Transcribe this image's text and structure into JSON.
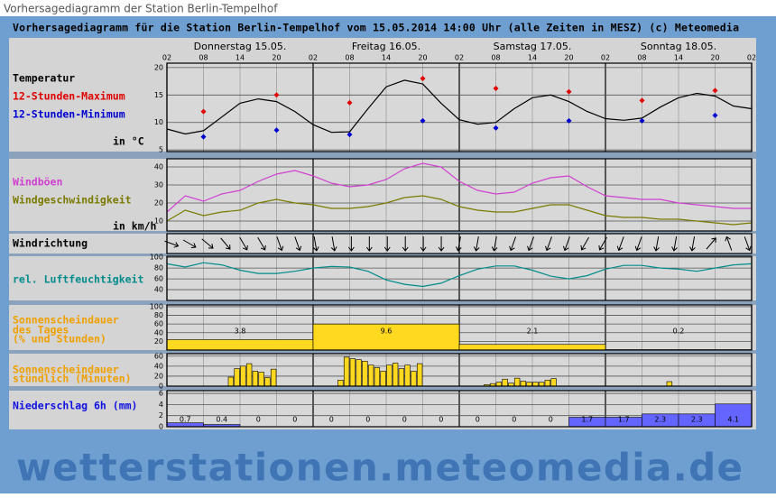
{
  "header": {
    "page_title": "Vorhersagediagramm der Station Berlin-Tempelhof",
    "title": "Vorhersagediagramm für die Station Berlin-Tempelhof vom 15.05.2014 14:00 Uhr (alle Zeiten in MESZ)  (c) Meteomedia",
    "days": [
      "Donnerstag 15.05.",
      "Freitag 16.05.",
      "Samstag 17.05.",
      "Sonntag 18.05."
    ],
    "hours": [
      "02",
      "08",
      "14",
      "20",
      "02",
      "08",
      "14",
      "20",
      "02",
      "08",
      "14",
      "20",
      "02",
      "08",
      "14",
      "20",
      "02"
    ]
  },
  "watermark": "wetterstationen.meteomedia.de",
  "chart_data": [
    {
      "type": "line",
      "title": "Temperatur",
      "title_color": "#000000",
      "unit": "in °C",
      "ylim": [
        4.7,
        20.8
      ],
      "yticks": [
        5,
        10,
        15,
        20
      ],
      "series": [
        {
          "color": "#000000",
          "values": [
            8.8,
            7.9,
            8.5,
            11,
            13.5,
            14.3,
            13.8,
            12,
            9.6,
            8.2,
            8.3,
            12.5,
            16.5,
            17.7,
            17,
            13.5,
            10.5,
            9.7,
            10,
            12.5,
            14.5,
            15,
            13.8,
            12,
            10.7,
            10.4,
            10.8,
            12.8,
            14.5,
            15.3,
            14.8,
            13,
            12.5
          ]
        },
        {
          "name": "12-Stunden-Maximum",
          "color": "#e00000",
          "marker": "diamond",
          "values": [
            null,
            12,
            null,
            15,
            null,
            13.6,
            null,
            18,
            null,
            16.2,
            null,
            15.6,
            null,
            14,
            null,
            15.8,
            null
          ]
        },
        {
          "name": "12-Stunden-Minimum",
          "color": "#0000d0",
          "marker": "diamond",
          "values": [
            null,
            7.4,
            null,
            8.6,
            null,
            7.8,
            null,
            10.3,
            null,
            9,
            null,
            10.3,
            null,
            10.3,
            null,
            11.3,
            null
          ]
        }
      ]
    },
    {
      "type": "line",
      "unit": "in km/h",
      "ylim": [
        4.5,
        44.5
      ],
      "yticks": [
        10,
        20,
        30,
        40
      ],
      "series": [
        {
          "name": "Windböen",
          "color": "#d040d0",
          "values": [
            15,
            24,
            21,
            25,
            27,
            32,
            36,
            38,
            35,
            31,
            29,
            30,
            33,
            39,
            42,
            40,
            32,
            27,
            25,
            26,
            31,
            34,
            35,
            29,
            24,
            23,
            22,
            22,
            20,
            19,
            18,
            17,
            17
          ]
        },
        {
          "name": "Windgeschwindigkeit",
          "color": "#7a7a00",
          "values": [
            10,
            16,
            13,
            15,
            16,
            20,
            22,
            20,
            19,
            17,
            17,
            18,
            20,
            23,
            24,
            22,
            18,
            16,
            15,
            15,
            17,
            19,
            19,
            16,
            13,
            12,
            12,
            11,
            11,
            10,
            9,
            8,
            9
          ]
        }
      ]
    },
    {
      "type": "arrows",
      "title": "Windrichtung",
      "title_color": "#000000",
      "values": [
        290,
        300,
        310,
        320,
        330,
        330,
        340,
        340,
        350,
        350,
        0,
        0,
        0,
        0,
        0,
        0,
        10,
        10,
        10,
        20,
        20,
        20,
        20,
        30,
        30,
        20,
        20,
        10,
        10,
        10,
        220,
        160,
        340
      ]
    },
    {
      "type": "line",
      "ylim": [
        20,
        102
      ],
      "yticks": [
        40,
        60,
        80,
        100
      ],
      "series": [
        {
          "name": "rel. Luftfeuchtigkeit",
          "color": "#008b8b",
          "values": [
            88,
            82,
            90,
            86,
            76,
            70,
            70,
            74,
            80,
            83,
            82,
            74,
            58,
            50,
            46,
            52,
            66,
            78,
            84,
            84,
            76,
            65,
            60,
            66,
            78,
            85,
            85,
            80,
            78,
            74,
            80,
            86,
            88
          ]
        }
      ]
    },
    {
      "type": "bar",
      "title_lines": [
        "Sonnenscheindauer",
        "des Tages",
        "(% und Stunden)"
      ],
      "title_color": "#f0a000",
      "ylim": [
        0,
        104
      ],
      "yticks": [
        20,
        40,
        60,
        80,
        100
      ],
      "color": "#ffd820",
      "values": [
        24,
        60,
        13,
        1
      ],
      "hours": [
        3.8,
        9.6,
        2.1,
        0.2
      ]
    },
    {
      "type": "bar",
      "title_lines": [
        "Sonnenscheindauer",
        "stündlich (Minuten)"
      ],
      "title_color": "#f0a000",
      "ylim": [
        0,
        65
      ],
      "yticks": [
        0,
        20,
        40,
        60
      ],
      "color": "#ffd820",
      "values": [
        0,
        0,
        0,
        0,
        0,
        0,
        0,
        0,
        0,
        0,
        18,
        35,
        40,
        45,
        30,
        28,
        17,
        34,
        0,
        0,
        0,
        0,
        0,
        0,
        0,
        0,
        0,
        0,
        12,
        58,
        55,
        53,
        50,
        42,
        37,
        30,
        42,
        46,
        35,
        42,
        30,
        45,
        0,
        0,
        0,
        0,
        0,
        0,
        0,
        0,
        0,
        0,
        3,
        5,
        8,
        14,
        6,
        16,
        10,
        8,
        8,
        8,
        12,
        15,
        0,
        0,
        0,
        0,
        0,
        0,
        0,
        0,
        0,
        0,
        0,
        0,
        0,
        0,
        0,
        0,
        0,
        0,
        9,
        0,
        0,
        0,
        0,
        0,
        0,
        0,
        0,
        0,
        0,
        0,
        0,
        0
      ]
    },
    {
      "type": "bar",
      "title": "Niederschlag 6h (mm)",
      "title_color": "#1010e0",
      "ylim": [
        0,
        6.5
      ],
      "yticks": [
        0,
        2,
        4,
        6
      ],
      "color": "#6464ff",
      "printed": true,
      "values": [
        0.7,
        0.4,
        0,
        0,
        0,
        0,
        0,
        0,
        0,
        0,
        0,
        1.7,
        1.7,
        2.3,
        2.3,
        4.1
      ]
    }
  ]
}
